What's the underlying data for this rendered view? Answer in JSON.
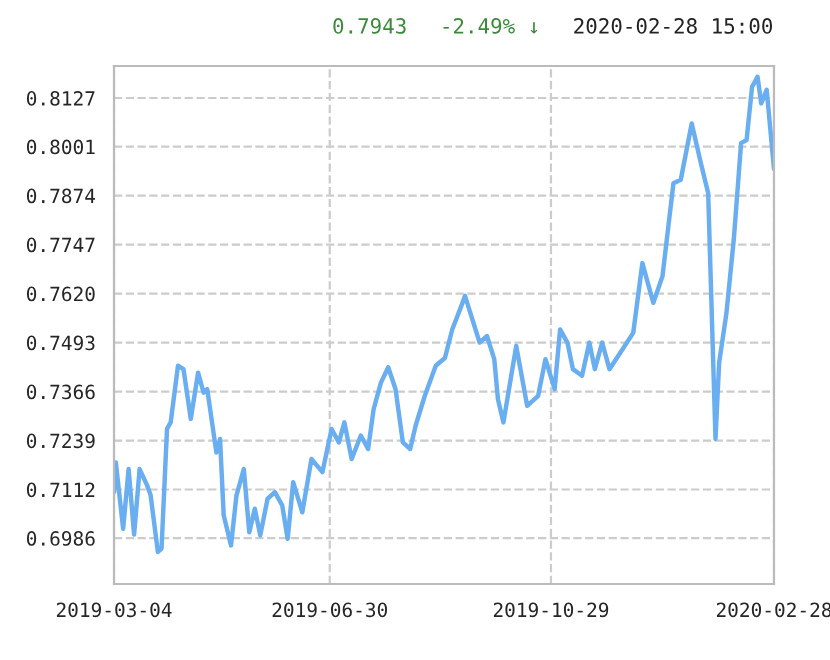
{
  "chart_data": {
    "type": "line",
    "annotations": [
      "0.7943",
      "-2.49% ↓",
      "2020-02-28 15:00"
    ],
    "x": [
      "2019-03-04",
      "2019-03-05",
      "2019-03-09",
      "2019-03-12",
      "2019-03-15",
      "2019-03-18",
      "2019-03-22",
      "2019-03-24",
      "2019-03-28",
      "2019-03-30",
      "2019-04-02",
      "2019-04-04",
      "2019-04-08",
      "2019-04-11",
      "2019-04-15",
      "2019-04-19",
      "2019-04-22",
      "2019-04-24",
      "2019-04-29",
      "2019-05-01",
      "2019-05-03",
      "2019-05-07",
      "2019-05-10",
      "2019-05-14",
      "2019-05-17",
      "2019-05-20",
      "2019-05-23",
      "2019-05-27",
      "2019-05-31",
      "2019-06-04",
      "2019-06-07",
      "2019-06-10",
      "2019-06-15",
      "2019-06-20",
      "2019-06-26",
      "2019-07-01",
      "2019-07-05",
      "2019-07-08",
      "2019-07-12",
      "2019-07-17",
      "2019-07-21",
      "2019-07-24",
      "2019-07-28",
      "2019-08-01",
      "2019-08-05",
      "2019-08-09",
      "2019-08-13",
      "2019-08-16",
      "2019-08-21",
      "2019-08-27",
      "2019-09-01",
      "2019-09-05",
      "2019-09-10",
      "2019-09-12",
      "2019-09-16",
      "2019-09-20",
      "2019-09-24",
      "2019-09-28",
      "2019-09-30",
      "2019-10-03",
      "2019-10-10",
      "2019-10-16",
      "2019-10-22",
      "2019-10-26",
      "2019-10-31",
      "2019-11-03",
      "2019-11-07",
      "2019-11-10",
      "2019-11-15",
      "2019-11-19",
      "2019-11-22",
      "2019-11-26",
      "2019-11-30",
      "2019-12-06",
      "2019-12-13",
      "2019-12-18",
      "2019-12-24",
      "2019-12-29",
      "2020-01-04",
      "2020-01-08",
      "2020-01-14",
      "2020-01-19",
      "2020-01-23",
      "2020-01-27",
      "2020-01-29",
      "2020-02-02",
      "2020-02-06",
      "2020-02-10",
      "2020-02-13",
      "2020-02-16",
      "2020-02-19",
      "2020-02-21",
      "2020-02-24",
      "2020-02-28"
    ],
    "series": [
      {
        "color": "#6aaef2",
        "values": [
          0.7105,
          0.7182,
          0.701,
          0.7165,
          0.6995,
          0.7165,
          0.7124,
          0.7098,
          0.695,
          0.6959,
          0.7269,
          0.7286,
          0.7433,
          0.7424,
          0.7295,
          0.7415,
          0.7363,
          0.7372,
          0.7208,
          0.7243,
          0.7045,
          0.6967,
          0.7097,
          0.7165,
          0.7001,
          0.7062,
          0.6993,
          0.7088,
          0.7105,
          0.7071,
          0.6984,
          0.7131,
          0.7053,
          0.7191,
          0.7157,
          0.7269,
          0.7234,
          0.7286,
          0.7191,
          0.7252,
          0.7217,
          0.732,
          0.7389,
          0.7429,
          0.7372,
          0.7234,
          0.7217,
          0.7278,
          0.7355,
          0.7433,
          0.7453,
          0.7527,
          0.7588,
          0.7614,
          0.7553,
          0.7493,
          0.751,
          0.745,
          0.7346,
          0.7286,
          0.7484,
          0.7329,
          0.7355,
          0.745,
          0.7372,
          0.7527,
          0.7493,
          0.7424,
          0.7407,
          0.7493,
          0.7424,
          0.7493,
          0.7424,
          0.7467,
          0.7518,
          0.7699,
          0.7596,
          0.7665,
          0.7906,
          0.7915,
          0.8061,
          0.7958,
          0.788,
          0.7243,
          0.7441,
          0.757,
          0.776,
          0.801,
          0.8018,
          0.8156,
          0.8182,
          0.8113,
          0.8148,
          0.7943
        ]
      }
    ],
    "xlim": [
      "2019-03-04",
      "2020-02-28"
    ],
    "xticks": [
      "2019-03-04",
      "2019-06-30",
      "2019-10-29",
      "2020-02-28"
    ],
    "ylim": [
      0.6867,
      0.821
    ],
    "yticks": [
      0.6986,
      0.7112,
      0.7239,
      0.7366,
      0.7493,
      {
        "value": 0.762,
        "label": "0.7620"
      },
      0.7747,
      0.7874,
      0.8001,
      0.8127
    ],
    "grid": true
  }
}
